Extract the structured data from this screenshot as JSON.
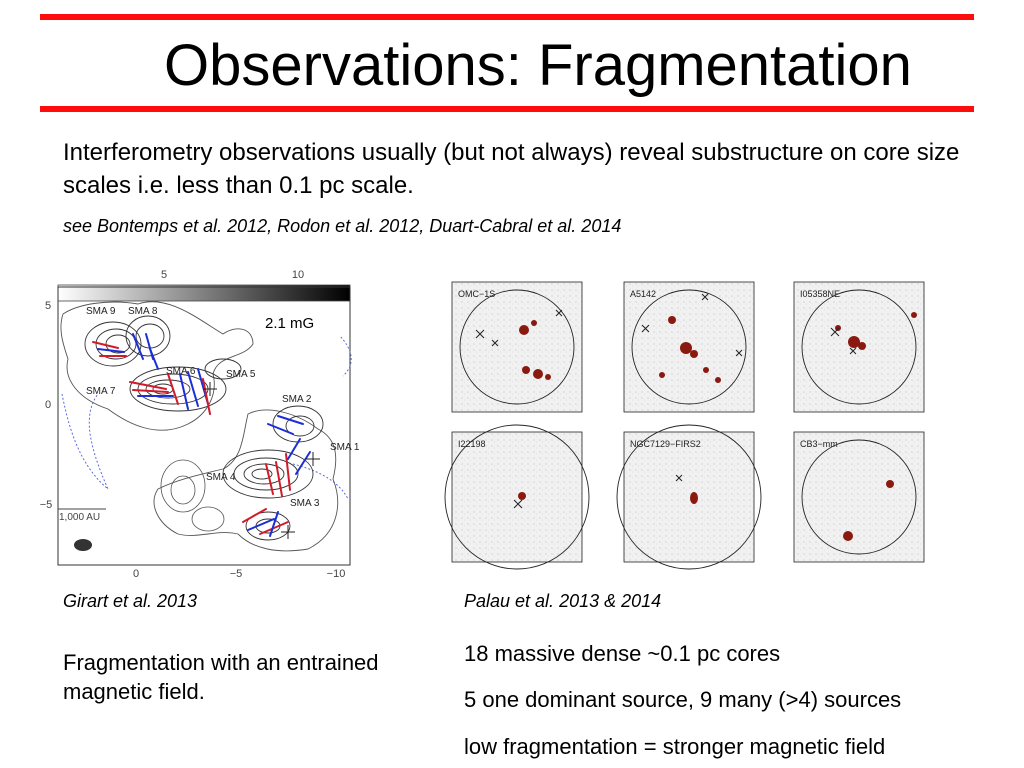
{
  "slide": {
    "title": "Observations: Fragmentation",
    "intro": "Interferometry observations usually (but not always) reveal substructure on core size scales i.e. less than 0.1 pc scale.",
    "references": "see Bontemps et al. 2012, Rodon et al. 2012, Duart-Cabral et al. 2014"
  },
  "left_figure": {
    "caption": "Girart et al. 2013",
    "colorbar_ticks": [
      "5",
      "10"
    ],
    "field_label": "2.1 mG",
    "scale_label": "1,000 AU",
    "y_ticks": [
      "5",
      "0",
      "−5"
    ],
    "x_ticks": [
      "0",
      "−5",
      "−10"
    ],
    "source_labels": [
      "SMA 9",
      "SMA 8",
      "SMA 6",
      "SMA 5",
      "SMA 7",
      "SMA 2",
      "SMA 1",
      "SMA 4",
      "SMA 3"
    ]
  },
  "right_figure": {
    "caption": "Palau et al. 2013 & 2014",
    "panels": [
      "OMC−1S",
      "A5142",
      "I05358NE",
      "I22198",
      "NGC7129−FIRS2",
      "CB3−mm"
    ]
  },
  "summary": "Fragmentation with an entrained magnetic field.",
  "stats": [
    "18 massive dense ~0.1 pc cores",
    "5 one dominant source, 9 many (>4) sources",
    "low fragmentation = stronger magnetic field"
  ],
  "colors": {
    "accent_line": "#ff0d0d",
    "field_red": "#d11b2a",
    "field_blue": "#1c2fd6",
    "core_fill": "#8a1a10"
  }
}
